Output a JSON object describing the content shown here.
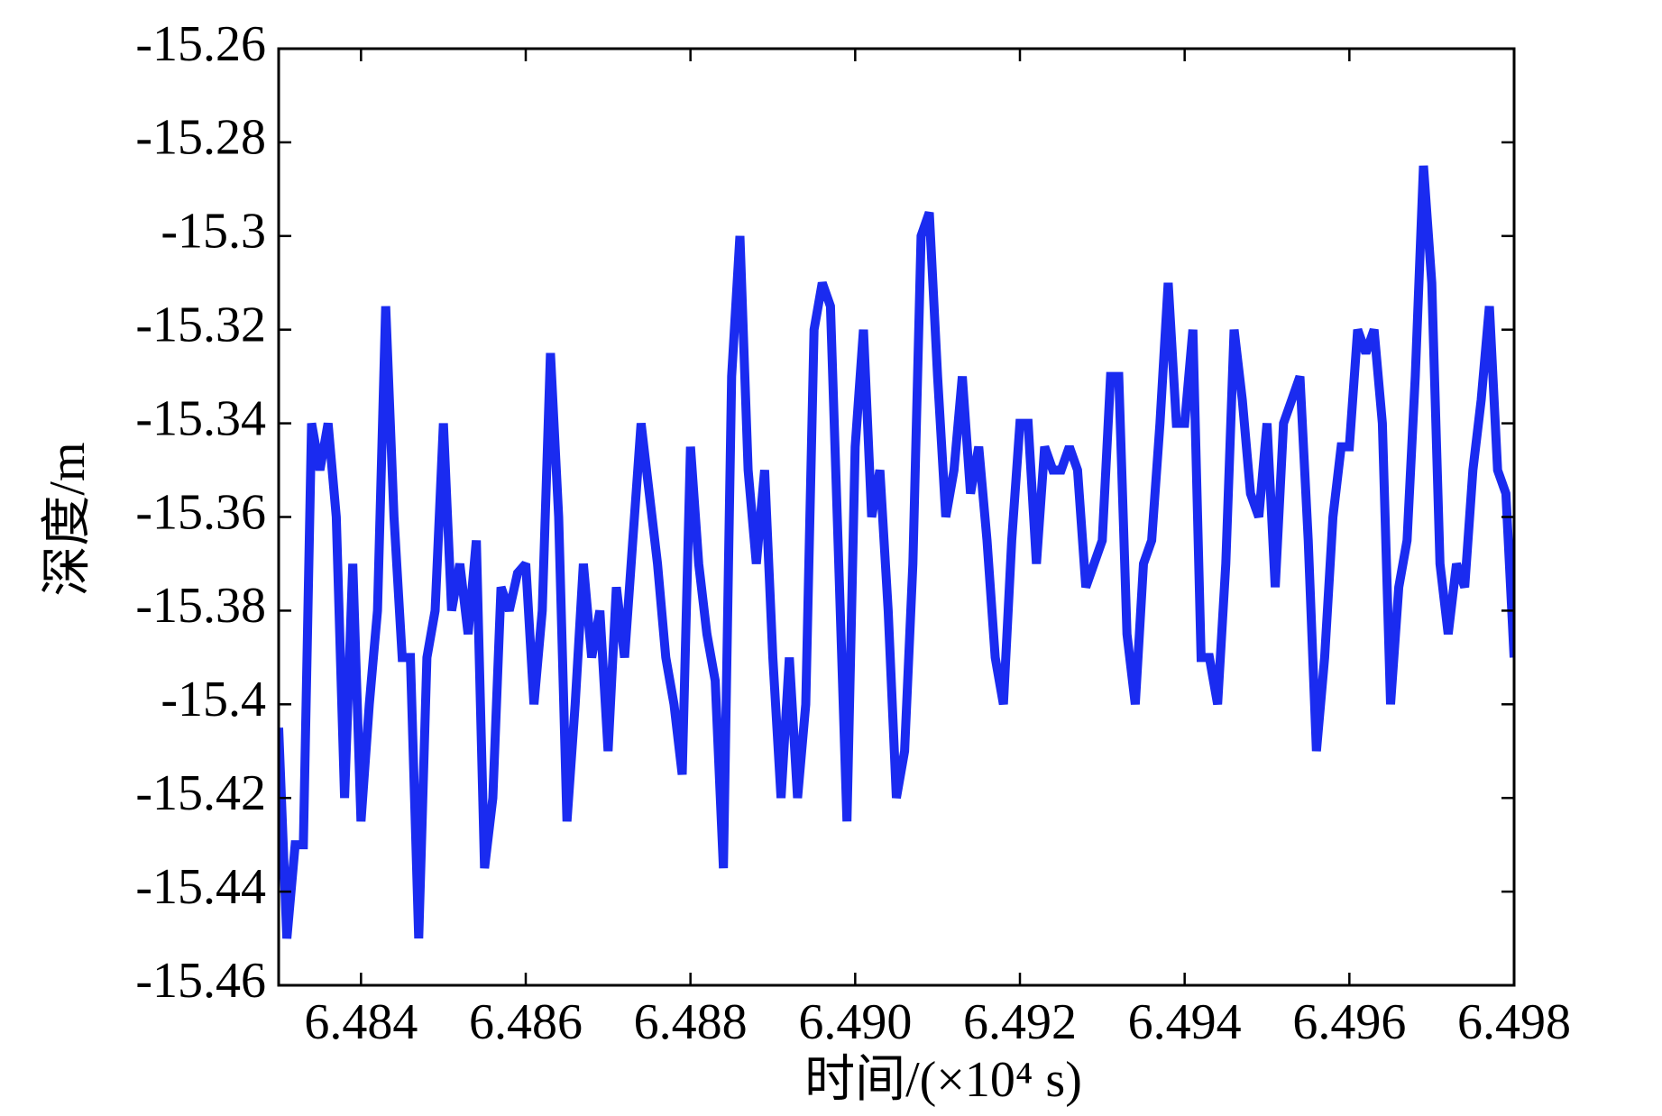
{
  "chart_data": {
    "type": "line",
    "xlabel": "时间/(×10⁴ s)",
    "ylabel": "深度/m",
    "x": [
      6.483,
      6.4831,
      6.4832,
      6.4833,
      6.4834,
      6.4835,
      6.4836,
      6.4837,
      6.4838,
      6.4839,
      6.484,
      6.4841,
      6.4842,
      6.4843,
      6.4844,
      6.4845,
      6.4846,
      6.4847,
      6.4848,
      6.4849,
      6.485,
      6.4851,
      6.4852,
      6.4853,
      6.4854,
      6.4855,
      6.4856,
      6.4857,
      6.4858,
      6.4859,
      6.486,
      6.4861,
      6.4862,
      6.4863,
      6.4864,
      6.4865,
      6.4866,
      6.4867,
      6.4868,
      6.4869,
      6.487,
      6.4871,
      6.4872,
      6.4873,
      6.4874,
      6.4875,
      6.4876,
      6.4877,
      6.4878,
      6.4879,
      6.488,
      6.4881,
      6.4882,
      6.4883,
      6.4884,
      6.4885,
      6.4886,
      6.4887,
      6.4888,
      6.4889,
      6.489,
      6.4891,
      6.4892,
      6.4893,
      6.4894,
      6.4895,
      6.4896,
      6.4897,
      6.4898,
      6.4899,
      6.49,
      6.4901,
      6.4902,
      6.4903,
      6.4904,
      6.4905,
      6.4906,
      6.4907,
      6.4908,
      6.4909,
      6.491,
      6.4911,
      6.4912,
      6.4913,
      6.4914,
      6.4915,
      6.4916,
      6.4917,
      6.4918,
      6.4919,
      6.492,
      6.4921,
      6.4922,
      6.4923,
      6.4924,
      6.4925,
      6.4926,
      6.4927,
      6.4928,
      6.4929,
      6.493,
      6.4931,
      6.4932,
      6.4933,
      6.4934,
      6.4935,
      6.4936,
      6.4937,
      6.4938,
      6.4939,
      6.494,
      6.4941,
      6.4942,
      6.4943,
      6.4944,
      6.4945,
      6.4946,
      6.4947,
      6.4948,
      6.4949,
      6.495,
      6.4951,
      6.4952,
      6.4953,
      6.4954,
      6.4955,
      6.4956,
      6.4957,
      6.4958,
      6.4959,
      6.496,
      6.4961,
      6.4962,
      6.4963,
      6.4964,
      6.4965,
      6.4966,
      6.4967,
      6.4968,
      6.4969,
      6.497,
      6.4971,
      6.4972,
      6.4973,
      6.4974,
      6.4975,
      6.4976,
      6.4977,
      6.4978,
      6.4979,
      6.498
    ],
    "series": [
      {
        "color": "#1a2bf0",
        "values": [
          -15.405,
          -15.45,
          -15.43,
          -15.43,
          -15.34,
          -15.35,
          -15.34,
          -15.36,
          -15.42,
          -15.37,
          -15.425,
          -15.4,
          -15.38,
          -15.315,
          -15.36,
          -15.39,
          -15.39,
          -15.45,
          -15.39,
          -15.38,
          -15.34,
          -15.38,
          -15.37,
          -15.385,
          -15.365,
          -15.435,
          -15.42,
          -15.375,
          -15.38,
          -15.372,
          -15.37,
          -15.4,
          -15.38,
          -15.325,
          -15.36,
          -15.425,
          -15.4,
          -15.37,
          -15.39,
          -15.38,
          -15.41,
          -15.375,
          -15.39,
          -15.365,
          -15.34,
          -15.355,
          -15.37,
          -15.39,
          -15.4,
          -15.415,
          -15.345,
          -15.37,
          -15.385,
          -15.395,
          -15.435,
          -15.33,
          -15.3,
          -15.35,
          -15.37,
          -15.35,
          -15.39,
          -15.42,
          -15.39,
          -15.42,
          -15.4,
          -15.32,
          -15.31,
          -15.315,
          -15.37,
          -15.425,
          -15.345,
          -15.32,
          -15.36,
          -15.35,
          -15.38,
          -15.42,
          -15.41,
          -15.37,
          -15.3,
          -15.295,
          -15.33,
          -15.36,
          -15.35,
          -15.33,
          -15.355,
          -15.345,
          -15.365,
          -15.39,
          -15.4,
          -15.365,
          -15.34,
          -15.34,
          -15.37,
          -15.345,
          -15.35,
          -15.35,
          -15.345,
          -15.35,
          -15.375,
          -15.37,
          -15.365,
          -15.33,
          -15.33,
          -15.385,
          -15.4,
          -15.37,
          -15.365,
          -15.34,
          -15.31,
          -15.34,
          -15.34,
          -15.32,
          -15.39,
          -15.39,
          -15.4,
          -15.37,
          -15.32,
          -15.335,
          -15.355,
          -15.36,
          -15.34,
          -15.375,
          -15.34,
          -15.335,
          -15.33,
          -15.365,
          -15.41,
          -15.39,
          -15.36,
          -15.345,
          -15.345,
          -15.32,
          -15.325,
          -15.32,
          -15.34,
          -15.4,
          -15.375,
          -15.365,
          -15.33,
          -15.285,
          -15.31,
          -15.37,
          -15.385,
          -15.37,
          -15.375,
          -15.35,
          -15.335,
          -15.315,
          -15.35,
          -15.355,
          -15.39
        ]
      }
    ],
    "xlim": [
      6.483,
      6.498
    ],
    "xticks": [
      6.484,
      6.486,
      6.488,
      {
        "value": 6.49,
        "label": "6.490"
      },
      6.492,
      6.494,
      6.496,
      6.498
    ],
    "ylim": [
      -15.46,
      -15.26
    ],
    "yticks": [
      -15.26,
      -15.28,
      -15.3,
      -15.32,
      -15.34,
      -15.36,
      -15.38,
      -15.4,
      -15.42,
      -15.44,
      -15.46
    ],
    "grid": false
  }
}
